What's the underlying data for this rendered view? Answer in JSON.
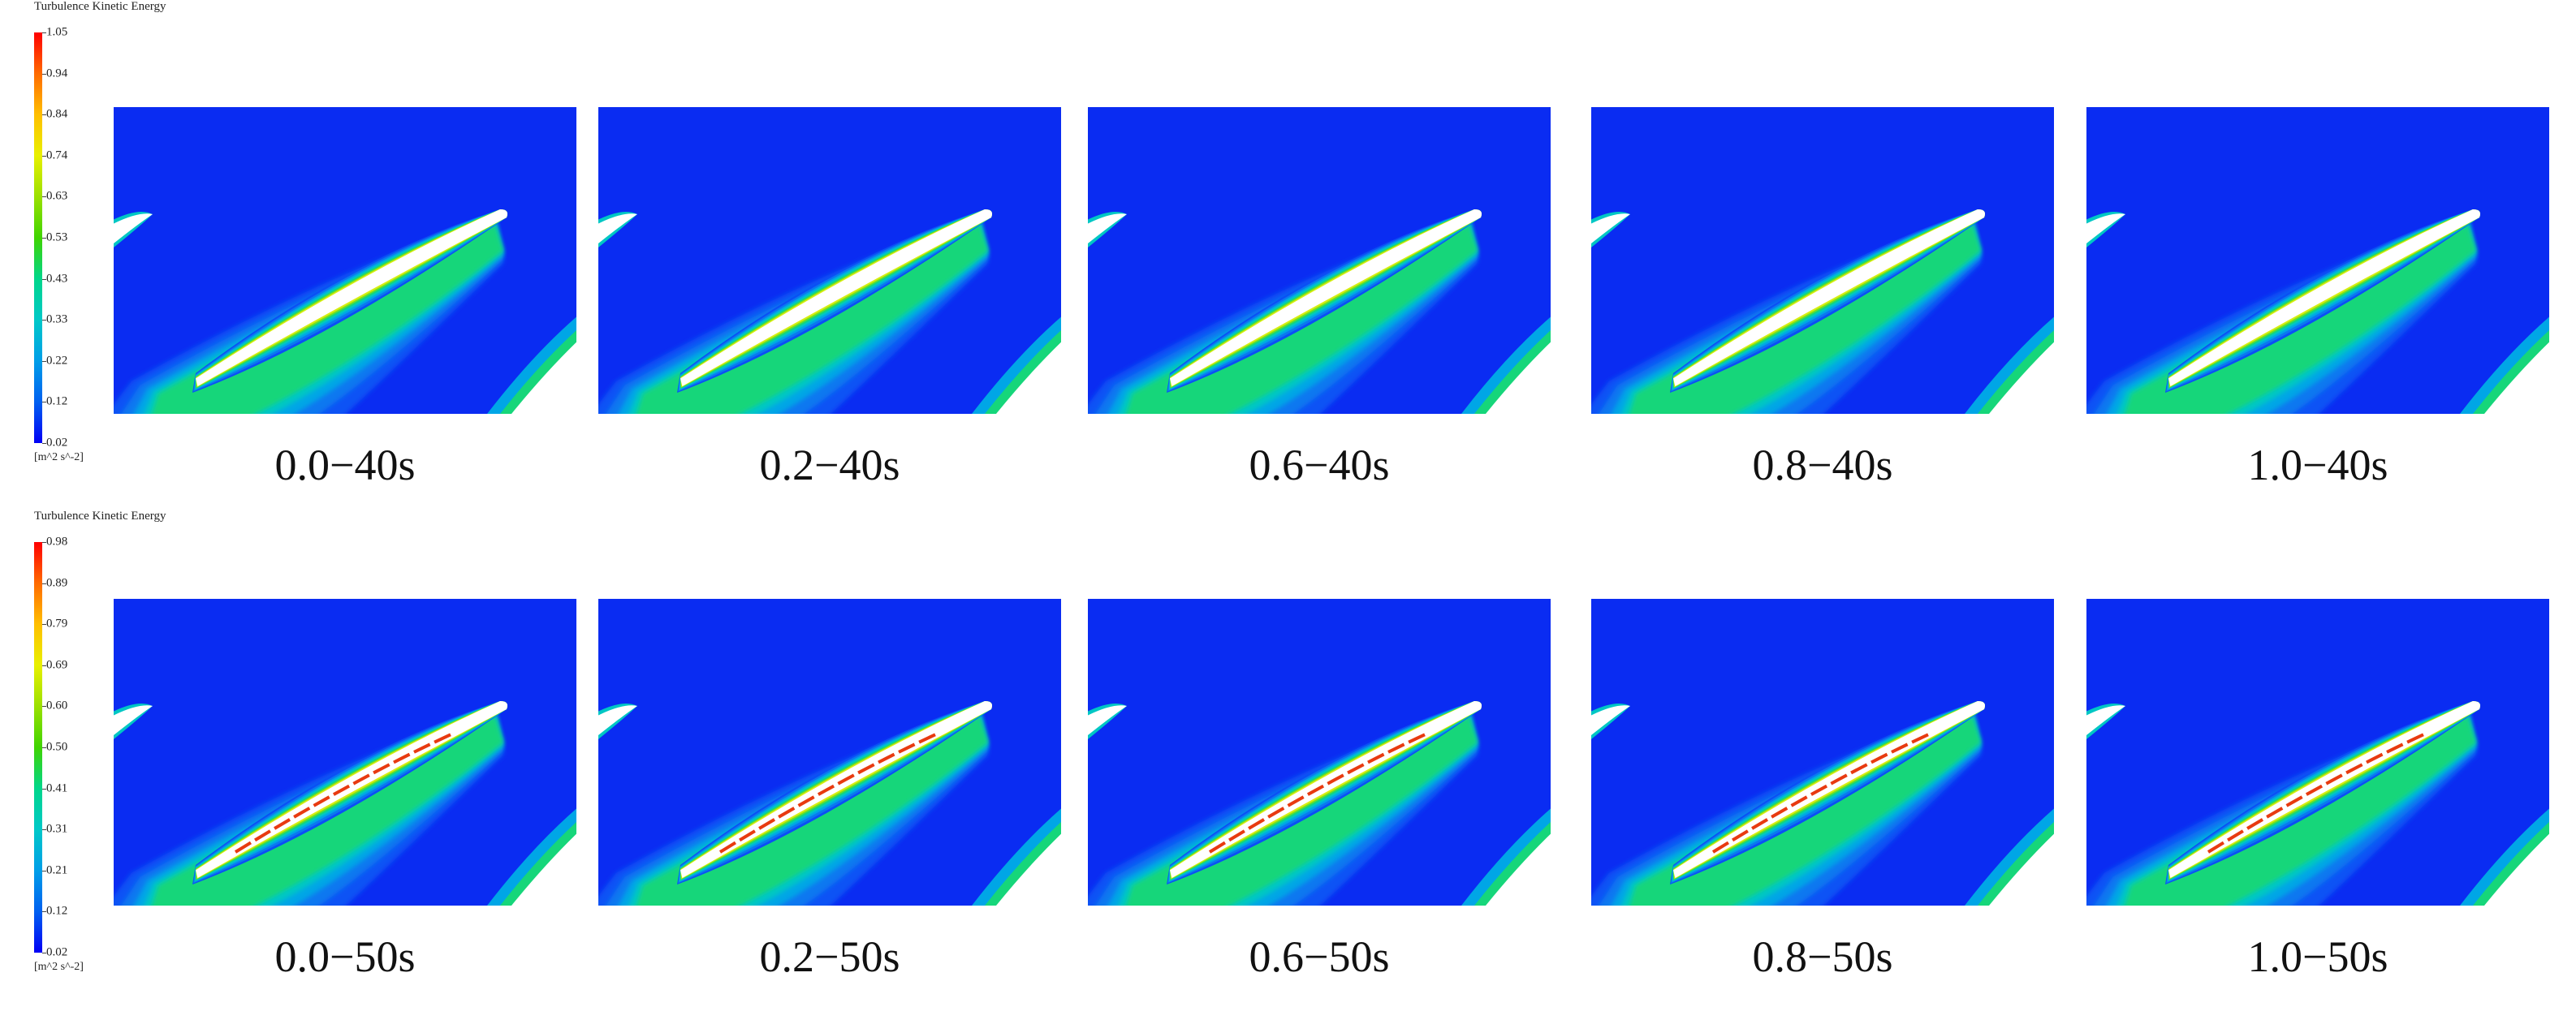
{
  "rows": [
    {
      "legend": {
        "title": "Turbulence Kinetic Energy",
        "unit": "[m^2 s^-2]",
        "ticks": [
          "1.05",
          "0.94",
          "0.84",
          "0.74",
          "0.63",
          "0.53",
          "0.43",
          "0.33",
          "0.22",
          "0.12",
          "0.02"
        ]
      },
      "panels": [
        {
          "label": "0.0−40s"
        },
        {
          "label": "0.2−40s"
        },
        {
          "label": "0.6−40s"
        },
        {
          "label": "0.8−40s"
        },
        {
          "label": "1.0−40s"
        }
      ]
    },
    {
      "legend": {
        "title": "Turbulence Kinetic Energy",
        "unit": "[m^2 s^-2]",
        "ticks": [
          "0.98",
          "0.89",
          "0.79",
          "0.69",
          "0.60",
          "0.50",
          "0.41",
          "0.31",
          "0.21",
          "0.12",
          "0.02"
        ]
      },
      "panels": [
        {
          "label": "0.0−50s"
        },
        {
          "label": "0.2−50s"
        },
        {
          "label": "0.6−50s"
        },
        {
          "label": "0.8−50s"
        },
        {
          "label": "1.0−50s"
        }
      ]
    }
  ],
  "colors": {
    "background_field": "#0a2cf2",
    "colormap": [
      "#ff0000",
      "#ff6a00",
      "#ffbf00",
      "#e8f000",
      "#9be000",
      "#3fd400",
      "#00d68a",
      "#00c8c8",
      "#009ee8",
      "#0060f0",
      "#0000f5"
    ]
  }
}
